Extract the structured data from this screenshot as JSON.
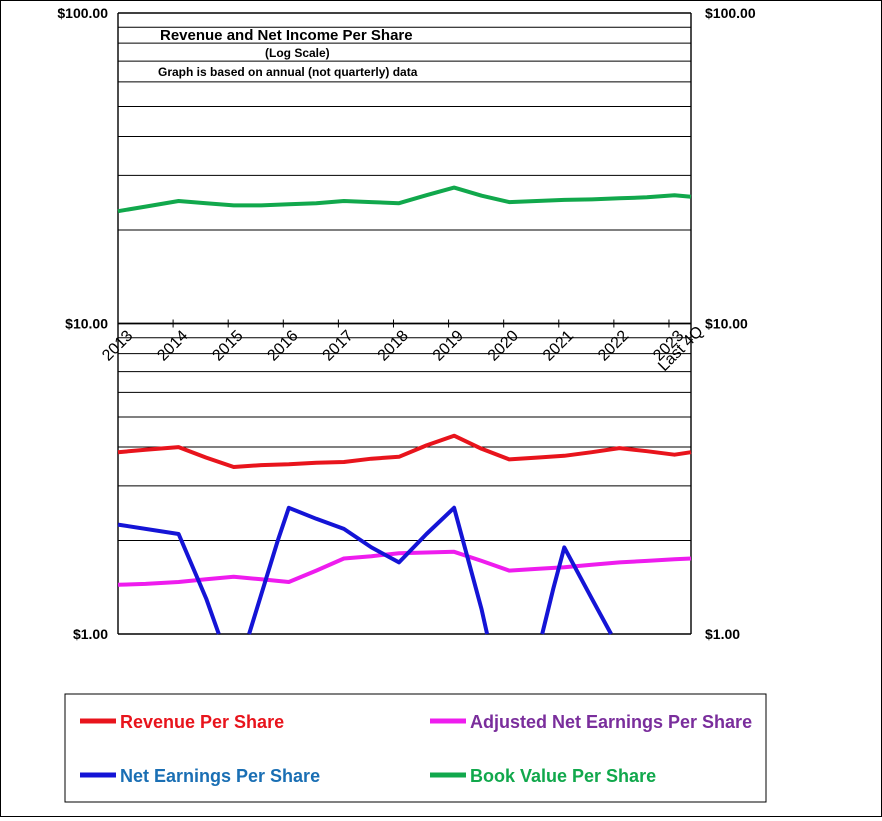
{
  "chart_data": {
    "type": "line",
    "title": "Revenue  and  Net Income  Per Share",
    "subtitle": "(Log  Scale)",
    "note": "Graph is based on annual (not quarterly) data",
    "yscale": "log",
    "ylim": [
      1,
      100
    ],
    "yticks_left": [
      "$100.00",
      "$10.00",
      "$1.00"
    ],
    "yticks_right": [
      "$100.00",
      "$10.00",
      "$1.00"
    ],
    "xlim": [
      2013,
      2023.4
    ],
    "categories": [
      "2013",
      "2014",
      "2015",
      "2016",
      "2017",
      "2018",
      "2019",
      "2020",
      "2021",
      "2022",
      "2023",
      "Last 4Q"
    ],
    "grid": true,
    "legend_position": "bottom",
    "series": [
      {
        "name": "Revenue Per Share",
        "color": "#e8141c",
        "x": [
          2013.0,
          2013.5,
          2014.1,
          2014.6,
          2015.1,
          2015.6,
          2016.1,
          2016.6,
          2017.1,
          2017.6,
          2018.1,
          2018.6,
          2019.1,
          2019.6,
          2020.1,
          2020.6,
          2021.1,
          2021.6,
          2022.1,
          2022.6,
          2023.1,
          2023.4
        ],
        "values": [
          3.85,
          3.92,
          4.0,
          3.7,
          3.45,
          3.5,
          3.52,
          3.56,
          3.58,
          3.67,
          3.72,
          4.05,
          4.35,
          3.95,
          3.65,
          3.7,
          3.75,
          3.85,
          3.97,
          3.88,
          3.78,
          3.85
        ]
      },
      {
        "name": "Adjusted Net Earnings Per Share",
        "color": "#ee1cee",
        "label_color": "#7a2e9c",
        "x": [
          2013.0,
          2013.5,
          2014.1,
          2014.6,
          2015.1,
          2015.6,
          2016.1,
          2016.6,
          2017.1,
          2017.6,
          2018.1,
          2018.6,
          2019.1,
          2019.6,
          2020.1,
          2020.6,
          2021.1,
          2021.6,
          2022.1,
          2022.6,
          2023.1,
          2023.4
        ],
        "values": [
          1.44,
          1.45,
          1.47,
          1.5,
          1.53,
          1.5,
          1.47,
          1.6,
          1.75,
          1.78,
          1.82,
          1.83,
          1.84,
          1.72,
          1.6,
          1.62,
          1.64,
          1.67,
          1.7,
          1.72,
          1.74,
          1.75
        ]
      },
      {
        "name": "Net Earnings Per Share",
        "color": "#1414d6",
        "label_color": "#1a6fb4",
        "segments": [
          {
            "x": [
              2013.0,
              2014.1,
              2014.6,
              2014.83
            ],
            "values": [
              2.25,
              2.1,
              1.3,
              1.0
            ]
          },
          {
            "x": [
              2015.38,
              2015.9,
              2016.1,
              2016.6,
              2017.1,
              2017.6,
              2018.1,
              2018.6,
              2019.1,
              2019.6,
              2019.7
            ],
            "values": [
              1.0,
              2.0,
              2.55,
              2.35,
              2.18,
              1.9,
              1.7,
              2.1,
              2.55,
              1.2,
              1.0
            ]
          },
          {
            "x": [
              2020.7,
              2020.9,
              2021.1,
              2021.6,
              2021.95
            ],
            "values": [
              1.0,
              1.4,
              1.9,
              1.3,
              1.0
            ]
          }
        ]
      },
      {
        "name": "Book Value Per Share",
        "color": "#11a84c",
        "x": [
          2013.0,
          2013.5,
          2014.1,
          2014.6,
          2015.1,
          2015.6,
          2016.1,
          2016.6,
          2017.1,
          2017.6,
          2018.1,
          2018.6,
          2019.1,
          2019.6,
          2020.1,
          2020.6,
          2021.1,
          2021.6,
          2022.1,
          2022.6,
          2023.1,
          2023.4
        ],
        "values": [
          23.0,
          23.8,
          24.8,
          24.4,
          24.0,
          24.0,
          24.2,
          24.4,
          24.8,
          24.6,
          24.4,
          25.9,
          27.4,
          25.8,
          24.6,
          24.8,
          25.0,
          25.1,
          25.3,
          25.5,
          25.9,
          25.6
        ]
      }
    ]
  }
}
